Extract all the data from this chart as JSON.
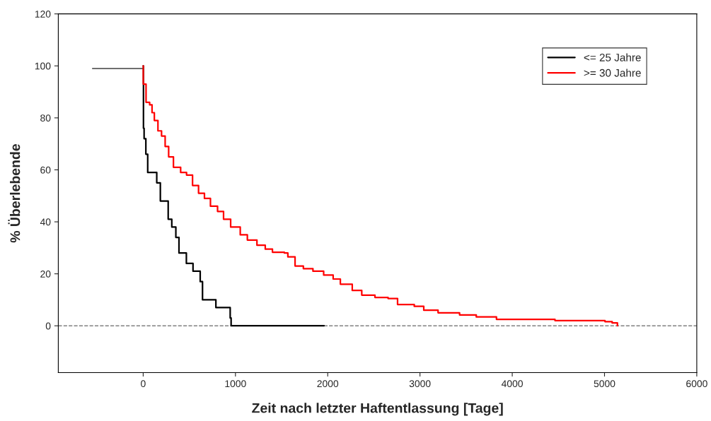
{
  "chart_data": {
    "type": "step",
    "xlabel": "Zeit nach letzter Haftentlassung [Tage]",
    "ylabel": "% Überlebende",
    "xlim": [
      -920,
      6000
    ],
    "ylim": [
      -18,
      120
    ],
    "xticks": [
      0,
      1000,
      2000,
      3000,
      4000,
      5000,
      6000
    ],
    "yticks": [
      0,
      20,
      40,
      60,
      80,
      100,
      120
    ],
    "grid": false,
    "legend": "top right",
    "marker": "none",
    "ref_lines": [
      {
        "axis": "y",
        "value": 0,
        "color": "#808080",
        "line_style": "dashed"
      }
    ],
    "series": [
      {
        "type": "line",
        "color": "#404040",
        "x": [
          -550,
          0
        ],
        "values": [
          99,
          99
        ]
      },
      {
        "name": "<= 25 Jahre",
        "color": "#000000",
        "x": [
          0,
          3,
          10,
          29,
          49,
          147,
          186,
          271,
          310,
          354,
          388,
          468,
          540,
          618,
          643,
          788,
          943,
          953,
          1960
        ],
        "values": [
          100,
          76,
          72,
          66,
          59,
          55,
          48,
          41,
          38,
          34,
          28,
          24,
          21,
          17,
          10,
          7,
          3,
          0,
          0
        ]
      },
      {
        "name": ">= 30 Jahre",
        "color": "#ff0000",
        "x": [
          0,
          1,
          31,
          70,
          96,
          121,
          160,
          199,
          238,
          276,
          328,
          406,
          470,
          535,
          600,
          664,
          729,
          806,
          871,
          948,
          1052,
          1129,
          1233,
          1323,
          1401,
          1530,
          1568,
          1646,
          1736,
          1840,
          1956,
          2059,
          2137,
          2266,
          2369,
          2512,
          2654,
          2757,
          2938,
          3041,
          3196,
          3429,
          3610,
          3829,
          4463,
          5005,
          5083,
          5140
        ],
        "values": [
          100,
          93,
          86,
          85,
          82,
          79,
          75,
          73,
          69,
          65,
          61,
          59,
          58,
          54,
          51,
          49,
          46,
          44,
          41,
          38,
          35,
          33,
          31,
          29.5,
          28.3,
          28,
          26.5,
          23,
          22,
          21,
          19.5,
          18,
          16,
          13.6,
          11.8,
          10.9,
          10.5,
          8.2,
          7.5,
          6,
          5,
          4.2,
          3.4,
          2.5,
          2,
          1.6,
          1.1,
          0
        ]
      }
    ]
  }
}
